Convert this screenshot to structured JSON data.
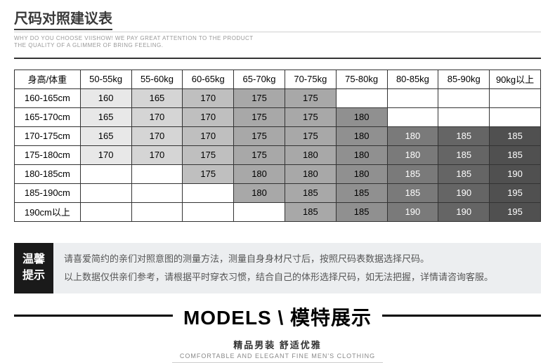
{
  "header": {
    "title": "尺码对照建议表",
    "subnote_line1": "WHY DO YOU CHOOSE VIISHOW! WE PAY GREAT ATTENTION TO THE PRODUCT",
    "subnote_line2": "THE QUALITY OF A GLIMMER OF BRING FEELING."
  },
  "table": {
    "corner": "身高/体重",
    "columns": [
      "50-55kg",
      "55-60kg",
      "60-65kg",
      "65-70kg",
      "70-75kg",
      "75-80kg",
      "80-85kg",
      "85-90kg",
      "90kg以上"
    ],
    "row_headers": [
      "160-165cm",
      "165-170cm",
      "170-175cm",
      "175-180cm",
      "180-185cm",
      "185-190cm",
      "190cm以上"
    ],
    "cells": [
      [
        {
          "v": "160",
          "s": 1
        },
        {
          "v": "165",
          "s": 2
        },
        {
          "v": "170",
          "s": 3
        },
        {
          "v": "175",
          "s": 4
        },
        {
          "v": "175",
          "s": 4
        },
        {
          "v": "",
          "s": 0
        },
        {
          "v": "",
          "s": 0
        },
        {
          "v": "",
          "s": 0
        },
        {
          "v": "",
          "s": 0
        }
      ],
      [
        {
          "v": "165",
          "s": 1
        },
        {
          "v": "170",
          "s": 2
        },
        {
          "v": "170",
          "s": 3
        },
        {
          "v": "175",
          "s": 4
        },
        {
          "v": "175",
          "s": 4
        },
        {
          "v": "180",
          "s": 5
        },
        {
          "v": "",
          "s": 0
        },
        {
          "v": "",
          "s": 0
        },
        {
          "v": "",
          "s": 0
        }
      ],
      [
        {
          "v": "165",
          "s": 1
        },
        {
          "v": "170",
          "s": 2
        },
        {
          "v": "170",
          "s": 3
        },
        {
          "v": "175",
          "s": 4
        },
        {
          "v": "175",
          "s": 4
        },
        {
          "v": "180",
          "s": 5
        },
        {
          "v": "180",
          "s": 6
        },
        {
          "v": "185",
          "s": 7
        },
        {
          "v": "185",
          "s": 8
        }
      ],
      [
        {
          "v": "170",
          "s": 1
        },
        {
          "v": "170",
          "s": 2
        },
        {
          "v": "175",
          "s": 3
        },
        {
          "v": "175",
          "s": 4
        },
        {
          "v": "180",
          "s": 4
        },
        {
          "v": "180",
          "s": 5
        },
        {
          "v": "180",
          "s": 6
        },
        {
          "v": "185",
          "s": 7
        },
        {
          "v": "185",
          "s": 8
        }
      ],
      [
        {
          "v": "",
          "s": 0
        },
        {
          "v": "",
          "s": 0
        },
        {
          "v": "175",
          "s": 3
        },
        {
          "v": "180",
          "s": 4
        },
        {
          "v": "180",
          "s": 4
        },
        {
          "v": "180",
          "s": 5
        },
        {
          "v": "185",
          "s": 6
        },
        {
          "v": "185",
          "s": 7
        },
        {
          "v": "190",
          "s": 8
        }
      ],
      [
        {
          "v": "",
          "s": 0
        },
        {
          "v": "",
          "s": 0
        },
        {
          "v": "",
          "s": 0
        },
        {
          "v": "180",
          "s": 4
        },
        {
          "v": "185",
          "s": 4
        },
        {
          "v": "185",
          "s": 5
        },
        {
          "v": "185",
          "s": 6
        },
        {
          "v": "190",
          "s": 7
        },
        {
          "v": "195",
          "s": 8
        }
      ],
      [
        {
          "v": "",
          "s": 0
        },
        {
          "v": "",
          "s": 0
        },
        {
          "v": "",
          "s": 0
        },
        {
          "v": "",
          "s": 0
        },
        {
          "v": "185",
          "s": 4
        },
        {
          "v": "185",
          "s": 5
        },
        {
          "v": "190",
          "s": 6
        },
        {
          "v": "190",
          "s": 7
        },
        {
          "v": "195",
          "s": 8
        }
      ]
    ]
  },
  "tip": {
    "label_line1": "温馨",
    "label_line2": "提示",
    "content_line1": "请喜爱简约的亲们对照意图的测量方法，测量自身身材尺寸后，按照尺码表数据选择尺码。",
    "content_line2": "以上数据仅供亲们参考，请根据平时穿衣习惯，结合自己的体形选择尺码，如无法把握，详情请咨询客服。"
  },
  "models": {
    "title": "MODELS \\ 模特展示",
    "sub1": "精品男装 舒适优雅",
    "sub2": "COMFORTABLE AND ELEGANT FINE MEN'S CLOTHING"
  },
  "shade_colors": [
    "#ffffff",
    "#e8e8e8",
    "#d5d5d5",
    "#bfbfbf",
    "#a8a8a8",
    "#909090",
    "#7a7a7a",
    "#656565",
    "#505050"
  ]
}
